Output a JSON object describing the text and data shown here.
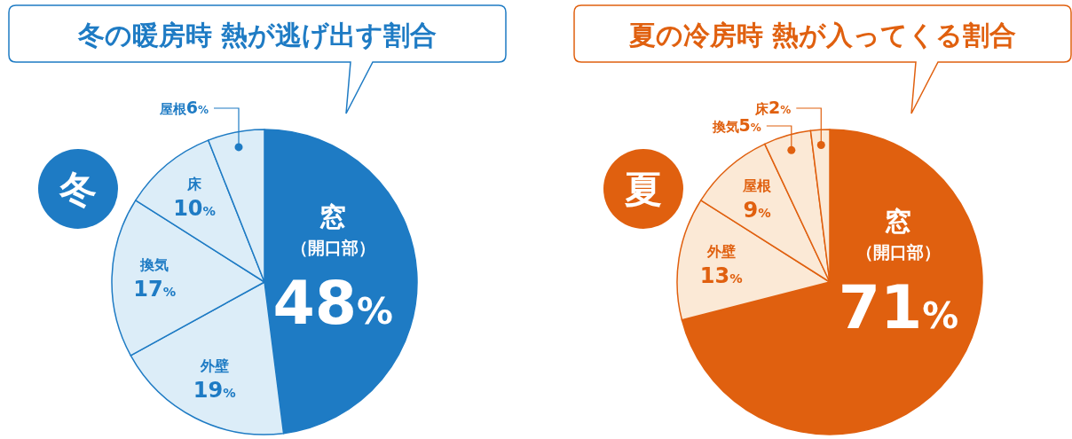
{
  "chart_data": [
    {
      "type": "pie",
      "title": "冬の暖房時 熱が逃げ出す割合",
      "subtitle": "冬",
      "categories": [
        "窓（開口部）",
        "外壁",
        "換気",
        "床",
        "屋根"
      ],
      "values": [
        48,
        19,
        17,
        10,
        6
      ],
      "value_labels": [
        "48%",
        "19%",
        "17%",
        "10%",
        "6%"
      ],
      "colors": [
        "#1e7bc4",
        "#dcedf8",
        "#dcedf8",
        "#dcedf8",
        "#dcedf8"
      ]
    },
    {
      "type": "pie",
      "title": "夏の冷房時 熱が入ってくる割合",
      "subtitle": "夏",
      "categories": [
        "窓（開口部）",
        "外壁",
        "屋根",
        "換気",
        "床"
      ],
      "values": [
        71,
        13,
        9,
        5,
        2
      ],
      "value_labels": [
        "71%",
        "13%",
        "9%",
        "5%",
        "2%"
      ],
      "colors": [
        "#e0600f",
        "#fbe9d6",
        "#fbe9d6",
        "#fbe9d6",
        "#fbe9d6"
      ]
    }
  ]
}
